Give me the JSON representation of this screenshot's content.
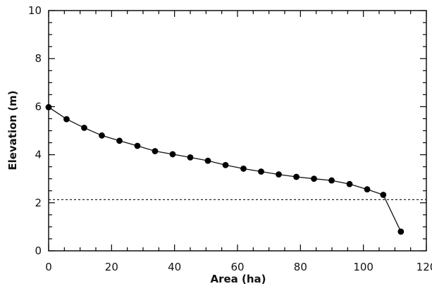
{
  "chart_data": {
    "type": "line",
    "title": "",
    "xlabel": "Area (ha)",
    "ylabel": "Elevation (m)",
    "xlim": [
      0,
      120
    ],
    "ylim": [
      0,
      10
    ],
    "xticks": [
      0,
      20,
      40,
      60,
      80,
      100,
      120
    ],
    "yticks": [
      0,
      2,
      4,
      6,
      8,
      10
    ],
    "grid": false,
    "legend": "none",
    "reference_line": {
      "orientation": "horizontal",
      "y": 2.13,
      "style": "dotted"
    },
    "series": [
      {
        "x": [
          0,
          5.7,
          11.3,
          16.9,
          22.5,
          28.2,
          33.8,
          39.4,
          45.0,
          50.6,
          56.2,
          61.9,
          67.5,
          73.1,
          78.7,
          84.3,
          89.9,
          95.6,
          101.2,
          106.3,
          111.9
        ],
        "y": [
          5.98,
          5.48,
          5.12,
          4.8,
          4.58,
          4.37,
          4.15,
          4.02,
          3.89,
          3.75,
          3.57,
          3.42,
          3.3,
          3.18,
          3.08,
          3.0,
          2.93,
          2.78,
          2.56,
          2.33,
          0.8
        ]
      }
    ]
  }
}
